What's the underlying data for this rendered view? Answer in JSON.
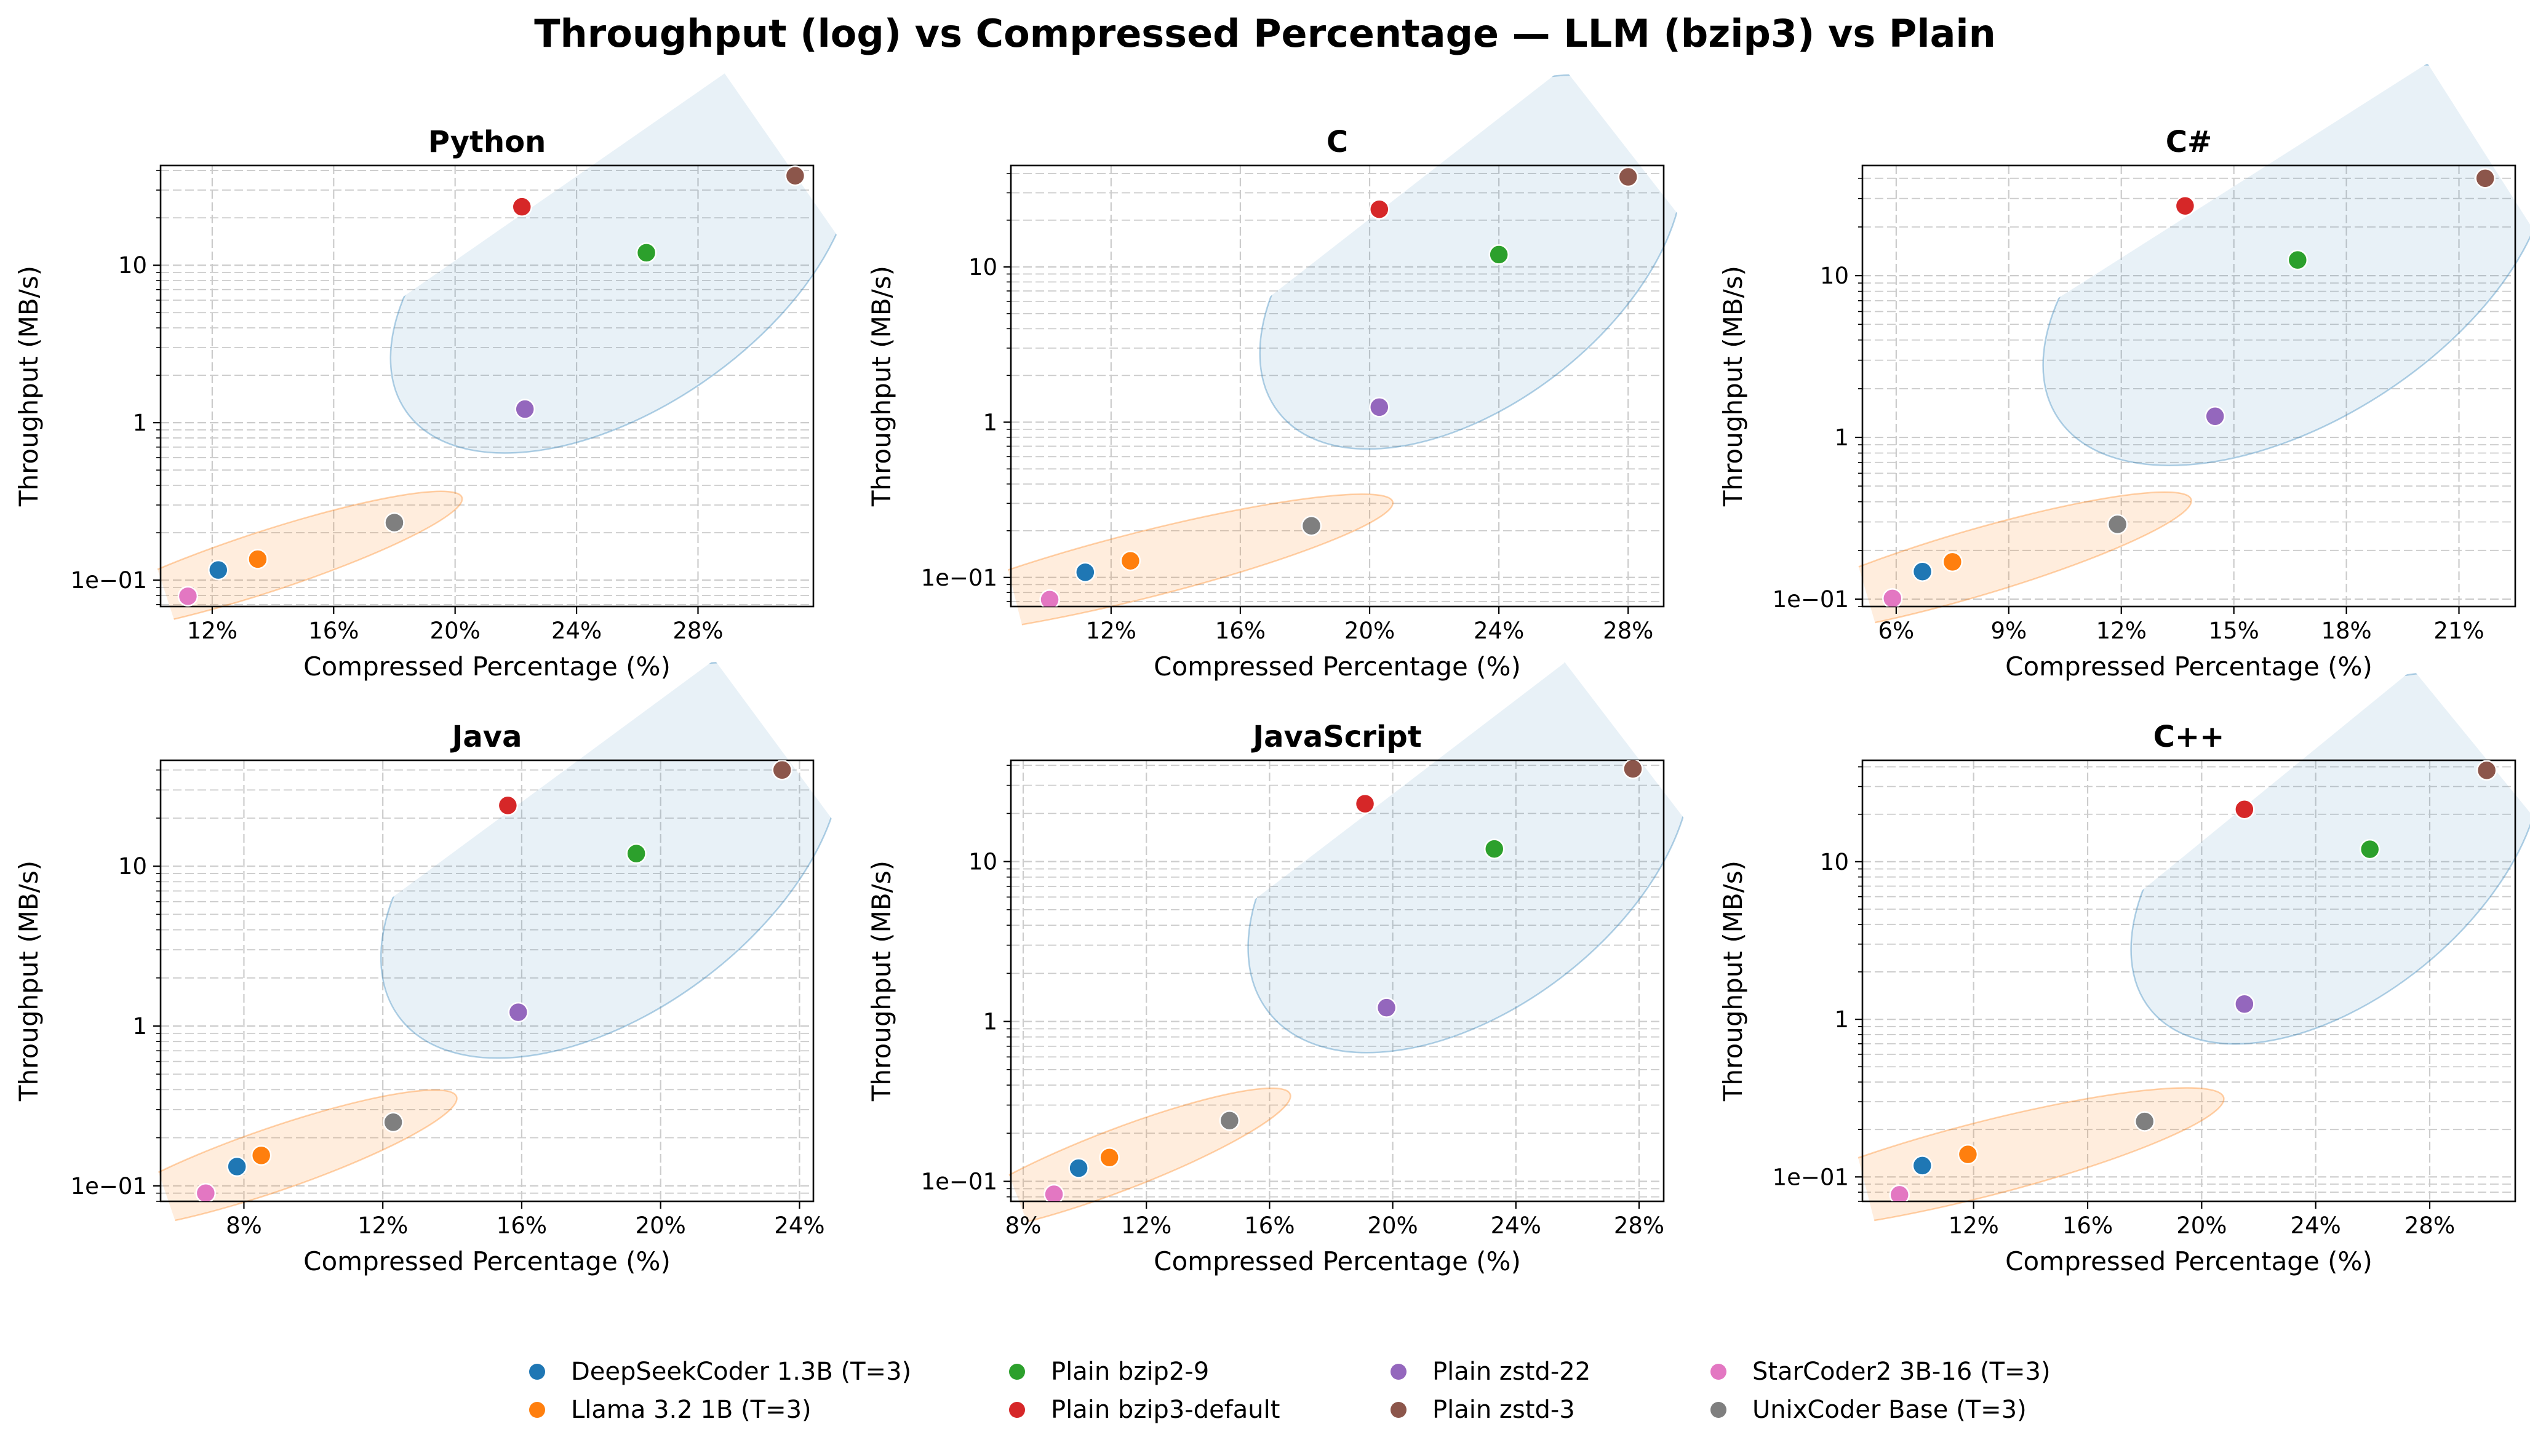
{
  "title": "Throughput (log) vs Compressed Percentage — LLM (bzip3) vs Plain",
  "series_colors": {
    "DeepSeekCoder 1.3B (T=3)": "#1f77b4",
    "Llama 3.2 1B (T=3)": "#ff7f0e",
    "Plain bzip2-9": "#2ca02c",
    "Plain bzip3-default": "#d62728",
    "Plain zstd-22": "#9467bd",
    "Plain zstd-3": "#8c564b",
    "StarCoder2 3B-16 (T=3)": "#e377c2",
    "UnixCoder Base (T=3)": "#7f7f7f"
  },
  "ellipse_colors": {
    "plain": "#1f77b4",
    "llm": "#ff7f0e"
  },
  "legend": [
    "DeepSeekCoder 1.3B (T=3)",
    "Llama 3.2 1B (T=3)",
    "Plain bzip2-9",
    "Plain bzip3-default",
    "Plain zstd-22",
    "Plain zstd-3",
    "StarCoder2 3B-16 (T=3)",
    "UnixCoder Base (T=3)"
  ],
  "chart_data": [
    {
      "type": "scatter",
      "title": "Python",
      "xlabel": "Compressed Percentage (%)",
      "ylabel": "Throughput (MB/s)",
      "xlim": [
        10.3,
        31.8
      ],
      "ylim": [
        0.068,
        43
      ],
      "xticks": [
        12,
        16,
        20,
        24,
        28
      ],
      "xtick_labels": [
        "12%",
        "16%",
        "20%",
        "24%",
        "28%"
      ],
      "yscale": "log",
      "yticks": [
        0.1,
        1,
        10
      ],
      "ytick_labels": [
        "1e−01",
        "1",
        "10"
      ],
      "grid": true,
      "series": [
        {
          "name": "DeepSeekCoder 1.3B (T=3)",
          "x": 12.2,
          "y": 0.116
        },
        {
          "name": "Llama 3.2 1B (T=3)",
          "x": 13.5,
          "y": 0.136
        },
        {
          "name": "Plain bzip2-9",
          "x": 26.3,
          "y": 12.0
        },
        {
          "name": "Plain bzip3-default",
          "x": 22.2,
          "y": 23.5
        },
        {
          "name": "Plain zstd-22",
          "x": 22.3,
          "y": 1.22
        },
        {
          "name": "Plain zstd-3",
          "x": 31.2,
          "y": 37.0
        },
        {
          "name": "StarCoder2 3B-16 (T=3)",
          "x": 11.2,
          "y": 0.079
        },
        {
          "name": "UnixCoder Base (T=3)",
          "x": 18.0,
          "y": 0.232
        }
      ]
    },
    {
      "type": "scatter",
      "title": "C",
      "xlabel": "Compressed Percentage (%)",
      "ylabel": "Throughput (MB/s)",
      "xlim": [
        8.9,
        29.1
      ],
      "ylim": [
        0.065,
        45
      ],
      "xticks": [
        12,
        16,
        20,
        24,
        28
      ],
      "xtick_labels": [
        "12%",
        "16%",
        "20%",
        "24%",
        "28%"
      ],
      "yscale": "log",
      "yticks": [
        0.1,
        1,
        10
      ],
      "ytick_labels": [
        "1e−01",
        "1",
        "10"
      ],
      "grid": true,
      "series": [
        {
          "name": "DeepSeekCoder 1.3B (T=3)",
          "x": 11.2,
          "y": 0.108
        },
        {
          "name": "Llama 3.2 1B (T=3)",
          "x": 12.6,
          "y": 0.128
        },
        {
          "name": "Plain bzip2-9",
          "x": 24.0,
          "y": 12.0
        },
        {
          "name": "Plain bzip3-default",
          "x": 20.3,
          "y": 23.5
        },
        {
          "name": "Plain zstd-22",
          "x": 20.3,
          "y": 1.25
        },
        {
          "name": "Plain zstd-3",
          "x": 28.0,
          "y": 38.0
        },
        {
          "name": "StarCoder2 3B-16 (T=3)",
          "x": 10.1,
          "y": 0.072
        },
        {
          "name": "UnixCoder Base (T=3)",
          "x": 18.2,
          "y": 0.215
        }
      ]
    },
    {
      "type": "scatter",
      "title": "C#",
      "xlabel": "Compressed Percentage (%)",
      "ylabel": "Throughput (MB/s)",
      "xlim": [
        5.1,
        22.5
      ],
      "ylim": [
        0.09,
        48
      ],
      "xticks": [
        6,
        9,
        12,
        15,
        18,
        21
      ],
      "xtick_labels": [
        "6%",
        "9%",
        "12%",
        "15%",
        "18%",
        "21%"
      ],
      "yscale": "log",
      "yticks": [
        0.1,
        1,
        10
      ],
      "ytick_labels": [
        "1e−01",
        "1",
        "10"
      ],
      "grid": true,
      "series": [
        {
          "name": "DeepSeekCoder 1.3B (T=3)",
          "x": 6.7,
          "y": 0.148
        },
        {
          "name": "Llama 3.2 1B (T=3)",
          "x": 7.5,
          "y": 0.17
        },
        {
          "name": "Plain bzip2-9",
          "x": 16.7,
          "y": 12.5
        },
        {
          "name": "Plain bzip3-default",
          "x": 13.7,
          "y": 27.0
        },
        {
          "name": "Plain zstd-22",
          "x": 14.5,
          "y": 1.35
        },
        {
          "name": "Plain zstd-3",
          "x": 21.7,
          "y": 40.0
        },
        {
          "name": "StarCoder2 3B-16 (T=3)",
          "x": 5.9,
          "y": 0.101
        },
        {
          "name": "UnixCoder Base (T=3)",
          "x": 11.9,
          "y": 0.29
        }
      ]
    },
    {
      "type": "scatter",
      "title": "Java",
      "xlabel": "Compressed Percentage (%)",
      "ylabel": "Throughput (MB/s)",
      "xlim": [
        5.6,
        24.4
      ],
      "ylim": [
        0.08,
        46
      ],
      "xticks": [
        8,
        12,
        16,
        20,
        24
      ],
      "xtick_labels": [
        "8%",
        "12%",
        "16%",
        "20%",
        "24%"
      ],
      "yscale": "log",
      "yticks": [
        0.1,
        1,
        10
      ],
      "ytick_labels": [
        "1e−01",
        "1",
        "10"
      ],
      "grid": true,
      "series": [
        {
          "name": "DeepSeekCoder 1.3B (T=3)",
          "x": 7.8,
          "y": 0.132
        },
        {
          "name": "Llama 3.2 1B (T=3)",
          "x": 8.5,
          "y": 0.155
        },
        {
          "name": "Plain bzip2-9",
          "x": 19.3,
          "y": 12.0
        },
        {
          "name": "Plain bzip3-default",
          "x": 15.6,
          "y": 24.0
        },
        {
          "name": "Plain zstd-22",
          "x": 15.9,
          "y": 1.22
        },
        {
          "name": "Plain zstd-3",
          "x": 23.5,
          "y": 40.0
        },
        {
          "name": "StarCoder2 3B-16 (T=3)",
          "x": 6.9,
          "y": 0.09
        },
        {
          "name": "UnixCoder Base (T=3)",
          "x": 12.3,
          "y": 0.25
        }
      ]
    },
    {
      "type": "scatter",
      "title": "JavaScript",
      "xlabel": "Compressed Percentage (%)",
      "ylabel": "Throughput (MB/s)",
      "xlim": [
        7.6,
        28.8
      ],
      "ylim": [
        0.075,
        43
      ],
      "xticks": [
        8,
        12,
        16,
        20,
        24,
        28
      ],
      "xtick_labels": [
        "8%",
        "12%",
        "16%",
        "20%",
        "24%",
        "28%"
      ],
      "yscale": "log",
      "yticks": [
        0.1,
        1,
        10
      ],
      "ytick_labels": [
        "1e−01",
        "1",
        "10"
      ],
      "grid": true,
      "series": [
        {
          "name": "DeepSeekCoder 1.3B (T=3)",
          "x": 9.8,
          "y": 0.121
        },
        {
          "name": "Llama 3.2 1B (T=3)",
          "x": 10.8,
          "y": 0.141
        },
        {
          "name": "Plain bzip2-9",
          "x": 23.3,
          "y": 12.0
        },
        {
          "name": "Plain bzip3-default",
          "x": 19.1,
          "y": 23.0
        },
        {
          "name": "Plain zstd-22",
          "x": 19.8,
          "y": 1.22
        },
        {
          "name": "Plain zstd-3",
          "x": 27.8,
          "y": 38.0
        },
        {
          "name": "StarCoder2 3B-16 (T=3)",
          "x": 9.0,
          "y": 0.083
        },
        {
          "name": "UnixCoder Base (T=3)",
          "x": 14.7,
          "y": 0.24
        }
      ]
    },
    {
      "type": "scatter",
      "title": "C++",
      "xlabel": "Compressed Percentage (%)",
      "ylabel": "Throughput (MB/s)",
      "xlim": [
        8.1,
        31.0
      ],
      "ylim": [
        0.07,
        44
      ],
      "xticks": [
        12,
        16,
        20,
        24,
        28
      ],
      "xtick_labels": [
        "12%",
        "16%",
        "20%",
        "24%",
        "28%"
      ],
      "yscale": "log",
      "yticks": [
        0.1,
        1,
        10
      ],
      "ytick_labels": [
        "1e−01",
        "1",
        "10"
      ],
      "grid": true,
      "series": [
        {
          "name": "DeepSeekCoder 1.3B (T=3)",
          "x": 10.2,
          "y": 0.118
        },
        {
          "name": "Llama 3.2 1B (T=3)",
          "x": 11.8,
          "y": 0.139
        },
        {
          "name": "Plain bzip2-9",
          "x": 25.9,
          "y": 12.0
        },
        {
          "name": "Plain bzip3-default",
          "x": 21.5,
          "y": 21.5
        },
        {
          "name": "Plain zstd-22",
          "x": 21.5,
          "y": 1.25
        },
        {
          "name": "Plain zstd-3",
          "x": 30.0,
          "y": 38.0
        },
        {
          "name": "StarCoder2 3B-16 (T=3)",
          "x": 9.4,
          "y": 0.077
        },
        {
          "name": "UnixCoder Base (T=3)",
          "x": 18.0,
          "y": 0.225
        }
      ]
    }
  ]
}
